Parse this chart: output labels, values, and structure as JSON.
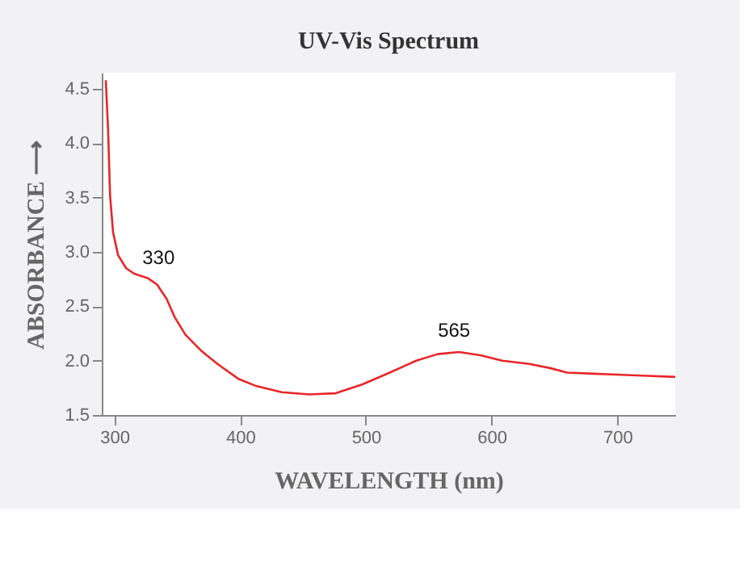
{
  "chart_data": {
    "type": "line",
    "title": "UV-Vis Spectrum",
    "xlabel": "WAVELENGTH (nm)",
    "ylabel": "ABSORBANCE ⟶",
    "x": [
      293.2,
      295,
      296.6,
      299,
      303,
      309.4,
      315.8,
      326.5,
      334,
      341.5,
      348,
      356.4,
      369.2,
      382,
      399,
      412,
      433,
      454.7,
      476,
      497,
      519,
      540,
      557,
      574,
      591,
      608.5,
      630,
      647,
      660,
      681,
      703,
      724,
      746
    ],
    "series": [
      {
        "color": "#e8262a",
        "values": [
          4.58,
          4.13,
          3.52,
          3.18,
          2.97,
          2.85,
          2.8,
          2.76,
          2.7,
          2.57,
          2.4,
          2.24,
          2.09,
          1.97,
          1.83,
          1.77,
          1.71,
          1.69,
          1.7,
          1.78,
          1.89,
          2.0,
          2.06,
          2.08,
          2.05,
          2.0,
          1.97,
          1.93,
          1.89,
          1.88,
          1.87,
          1.86,
          1.85
        ]
      }
    ],
    "annotations": [
      {
        "text": "330",
        "x": 330,
        "y": 2.74
      },
      {
        "text": "565",
        "x": 565,
        "y": 2.07
      }
    ],
    "xlim": [
      290,
      746
    ],
    "ylim": [
      1.5,
      4.65
    ],
    "xticks": [
      300,
      400,
      500,
      600,
      700
    ],
    "yticks": [
      {
        "value": 1.5,
        "label": "1.5"
      },
      {
        "value": 2,
        "label": "2.0"
      },
      {
        "value": 2.5,
        "label": "2.5"
      },
      {
        "value": 3,
        "label": "3.0"
      },
      {
        "value": 3.5,
        "label": "3.5"
      },
      {
        "value": 4,
        "label": "4.0"
      },
      {
        "value": 4.5,
        "label": "4.5"
      }
    ],
    "grid": false,
    "marker": "none",
    "line_style": "solid"
  }
}
